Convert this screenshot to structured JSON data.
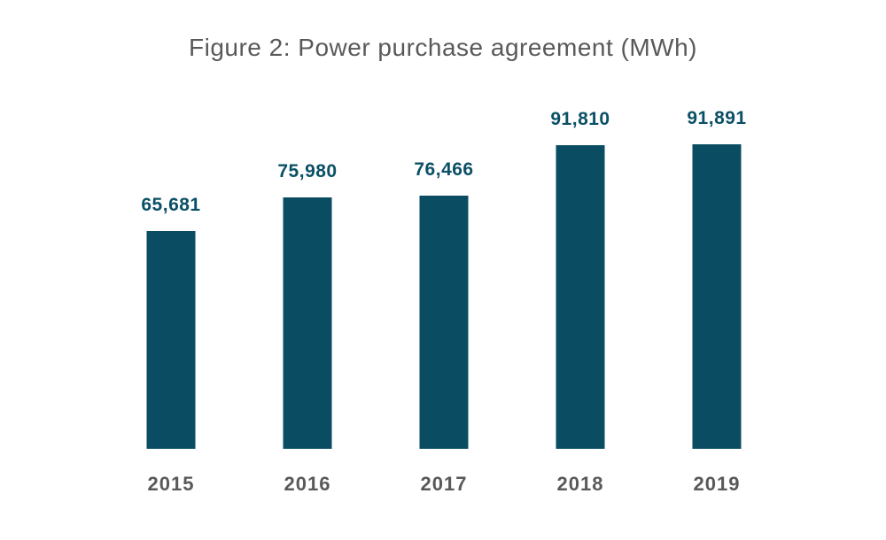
{
  "chart_data": {
    "type": "bar",
    "title": "Figure 2: Power purchase agreement (MWh)",
    "categories": [
      "2015",
      "2016",
      "2017",
      "2018",
      "2019"
    ],
    "values": [
      65681,
      75980,
      76466,
      91810,
      91891
    ],
    "value_labels": [
      "65,681",
      "75,980",
      "76,466",
      "91,810",
      "91,891"
    ],
    "xlabel": "",
    "ylabel": "",
    "ylim": [
      0,
      100000
    ],
    "grid": false,
    "legend": false,
    "bar_color": "#0a4d63",
    "value_label_color": "#0b5066",
    "axis_text_color": "#58595b",
    "background_color": "#ffffff"
  }
}
